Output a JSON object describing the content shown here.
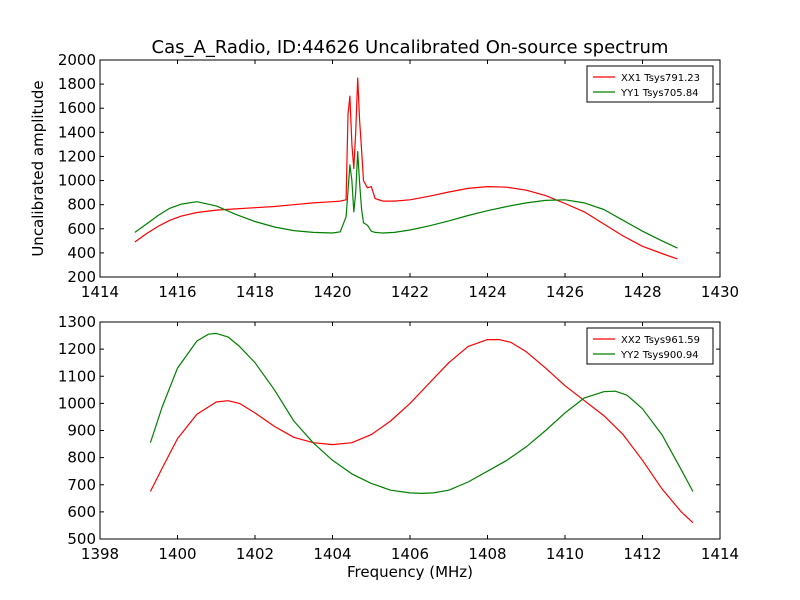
{
  "figure": {
    "title": "Cas_A_Radio, ID:44626 Uncalibrated On-source spectrum"
  },
  "chart_data": [
    {
      "type": "line",
      "title": "Cas_A_Radio, ID:44626 Uncalibrated On-source spectrum",
      "xlabel": "",
      "ylabel": "Uncalibrated amplitude",
      "xlim": [
        1414,
        1430
      ],
      "ylim": [
        200,
        2000
      ],
      "xticks": [
        1414,
        1416,
        1418,
        1420,
        1422,
        1424,
        1426,
        1428,
        1430
      ],
      "yticks": [
        200,
        400,
        600,
        800,
        1000,
        1200,
        1400,
        1600,
        1800,
        2000
      ],
      "grid": false,
      "legend_position": "top-right",
      "series": [
        {
          "name": "XX1 Tsys791.23",
          "color": "#ff0000",
          "x": [
            1414.9,
            1415.2,
            1415.5,
            1415.8,
            1416.1,
            1416.5,
            1417.0,
            1417.5,
            1418.0,
            1418.5,
            1419.0,
            1419.5,
            1420.0,
            1420.2,
            1420.35,
            1420.4,
            1420.45,
            1420.5,
            1420.55,
            1420.6,
            1420.65,
            1420.7,
            1420.75,
            1420.8,
            1420.9,
            1421.0,
            1421.1,
            1421.3,
            1421.6,
            1422.0,
            1422.5,
            1423.0,
            1423.5,
            1424.0,
            1424.5,
            1425.0,
            1425.5,
            1426.0,
            1426.5,
            1427.0,
            1427.5,
            1428.0,
            1428.5,
            1428.9
          ],
          "y": [
            490,
            560,
            620,
            670,
            705,
            735,
            755,
            765,
            775,
            785,
            800,
            815,
            825,
            830,
            840,
            1550,
            1700,
            1300,
            1100,
            1400,
            1850,
            1500,
            1250,
            1000,
            940,
            950,
            850,
            830,
            830,
            840,
            870,
            905,
            935,
            950,
            945,
            920,
            875,
            810,
            740,
            640,
            540,
            455,
            395,
            350
          ]
        },
        {
          "name": "YY1 Tsys705.84",
          "color": "#008000",
          "x": [
            1414.9,
            1415.2,
            1415.5,
            1415.8,
            1416.1,
            1416.5,
            1417.0,
            1417.5,
            1418.0,
            1418.5,
            1419.0,
            1419.5,
            1420.0,
            1420.2,
            1420.35,
            1420.45,
            1420.5,
            1420.55,
            1420.6,
            1420.65,
            1420.7,
            1420.75,
            1420.8,
            1420.9,
            1421.0,
            1421.1,
            1421.3,
            1421.6,
            1422.0,
            1422.5,
            1423.0,
            1423.5,
            1424.0,
            1424.5,
            1425.0,
            1425.5,
            1426.0,
            1426.5,
            1427.0,
            1427.5,
            1428.0,
            1428.5,
            1428.9
          ],
          "y": [
            570,
            640,
            710,
            770,
            805,
            825,
            790,
            720,
            660,
            615,
            585,
            570,
            565,
            575,
            700,
            1130,
            1000,
            740,
            900,
            1240,
            980,
            760,
            650,
            630,
            580,
            570,
            565,
            570,
            590,
            625,
            665,
            710,
            750,
            785,
            815,
            835,
            840,
            815,
            760,
            670,
            580,
            500,
            440
          ]
        }
      ]
    },
    {
      "type": "line",
      "title": "",
      "xlabel": "Frequency (MHz)",
      "ylabel": "",
      "xlim": [
        1398,
        1414
      ],
      "ylim": [
        500,
        1300
      ],
      "xticks": [
        1398,
        1400,
        1402,
        1404,
        1406,
        1408,
        1410,
        1412,
        1414
      ],
      "yticks": [
        500,
        600,
        700,
        800,
        900,
        1000,
        1100,
        1200,
        1300
      ],
      "grid": false,
      "legend_position": "top-right",
      "series": [
        {
          "name": "XX2 Tsys961.59",
          "color": "#ff0000",
          "x": [
            1399.3,
            1399.6,
            1400.0,
            1400.5,
            1401.0,
            1401.3,
            1401.6,
            1402.0,
            1402.5,
            1403.0,
            1403.5,
            1404.0,
            1404.5,
            1405.0,
            1405.5,
            1406.0,
            1406.5,
            1407.0,
            1407.5,
            1408.0,
            1408.3,
            1408.6,
            1409.0,
            1409.5,
            1410.0,
            1410.5,
            1411.0,
            1411.5,
            1412.0,
            1412.5,
            1413.0,
            1413.3
          ],
          "y": [
            675,
            760,
            870,
            960,
            1005,
            1010,
            1000,
            965,
            915,
            875,
            855,
            848,
            855,
            885,
            935,
            1000,
            1075,
            1150,
            1210,
            1235,
            1235,
            1225,
            1190,
            1130,
            1065,
            1010,
            955,
            885,
            790,
            685,
            600,
            560
          ]
        },
        {
          "name": "YY2 Tsys900.94",
          "color": "#008000",
          "x": [
            1399.3,
            1399.6,
            1400.0,
            1400.5,
            1400.8,
            1401.0,
            1401.3,
            1401.6,
            1402.0,
            1402.5,
            1403.0,
            1403.5,
            1404.0,
            1404.5,
            1405.0,
            1405.5,
            1406.0,
            1406.3,
            1406.6,
            1407.0,
            1407.5,
            1408.0,
            1408.5,
            1409.0,
            1409.5,
            1410.0,
            1410.5,
            1411.0,
            1411.3,
            1411.6,
            1412.0,
            1412.5,
            1413.0,
            1413.3
          ],
          "y": [
            855,
            985,
            1130,
            1230,
            1255,
            1258,
            1245,
            1210,
            1150,
            1050,
            935,
            855,
            790,
            740,
            705,
            680,
            670,
            668,
            670,
            680,
            710,
            750,
            790,
            840,
            900,
            965,
            1020,
            1043,
            1045,
            1030,
            980,
            885,
            755,
            675
          ]
        }
      ]
    }
  ]
}
